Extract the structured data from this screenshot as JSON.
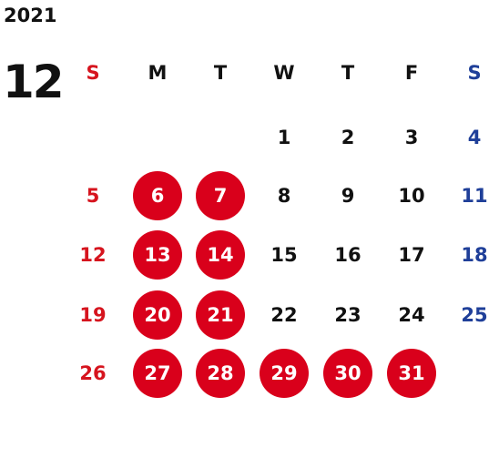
{
  "calendar": {
    "year": "2021",
    "month": "12",
    "colors": {
      "text": "#111111",
      "sunday": "#d6141e",
      "saturday": "#1f3f99",
      "highlight_fill": "#d9001b",
      "highlight_text": "#ffffff"
    },
    "weekdays": [
      "S",
      "M",
      "T",
      "W",
      "T",
      "F",
      "S"
    ],
    "weeks": [
      [
        "",
        "",
        "",
        "1",
        "2",
        "3",
        "4"
      ],
      [
        "5",
        "6",
        "7",
        "8",
        "9",
        "10",
        "11"
      ],
      [
        "12",
        "13",
        "14",
        "15",
        "16",
        "17",
        "18"
      ],
      [
        "19",
        "20",
        "21",
        "22",
        "23",
        "24",
        "25"
      ],
      [
        "26",
        "27",
        "28",
        "29",
        "30",
        "31",
        ""
      ]
    ],
    "highlighted_days": [
      "6",
      "7",
      "13",
      "14",
      "20",
      "21",
      "27",
      "28",
      "29",
      "30",
      "31"
    ]
  }
}
